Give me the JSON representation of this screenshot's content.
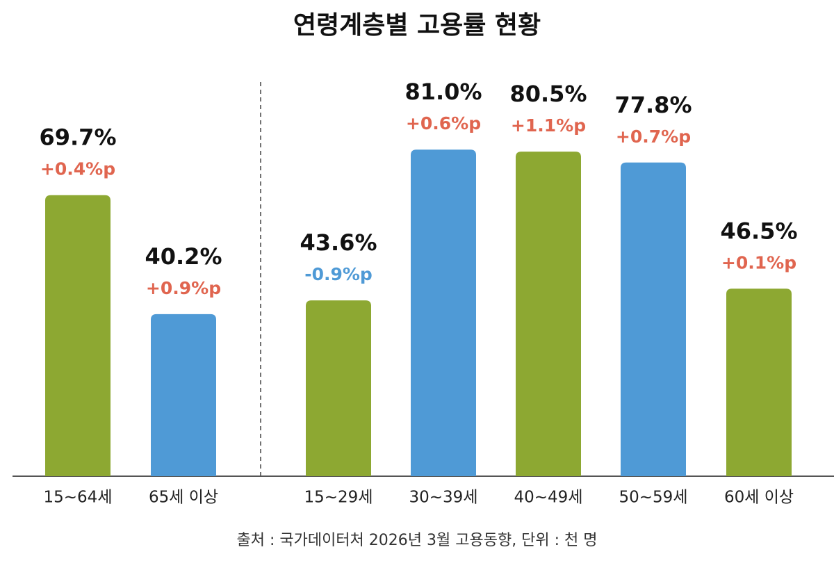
{
  "chart_data": {
    "type": "bar",
    "title": "연령계층별 고용률 현황",
    "categories": [
      "15~64세",
      "65세 이상",
      "15~29세",
      "30~39세",
      "40~49세",
      "50~59세",
      "60세 이상"
    ],
    "values": [
      69.7,
      40.2,
      43.6,
      81.0,
      80.5,
      77.8,
      46.5
    ],
    "value_labels": [
      "69.7%",
      "40.2%",
      "43.6%",
      "81.0%",
      "80.5%",
      "77.8%",
      "46.5%"
    ],
    "changes": [
      0.4,
      0.9,
      -0.9,
      0.6,
      1.1,
      0.7,
      0.1
    ],
    "change_labels": [
      "+0.4%p",
      "+0.9%p",
      "-0.9%p",
      "+0.6%p",
      "+1.1%p",
      "+0.7%p",
      "+0.1%p"
    ],
    "colors": [
      "#8da832",
      "#4f9ad6",
      "#8da832",
      "#4f9ad6",
      "#8da832",
      "#4f9ad6",
      "#8da832"
    ],
    "ylim": [
      0,
      100
    ],
    "source": "출처 : 국가데이터처 2026년 3월 고용동향, 단위 : 천 명"
  }
}
